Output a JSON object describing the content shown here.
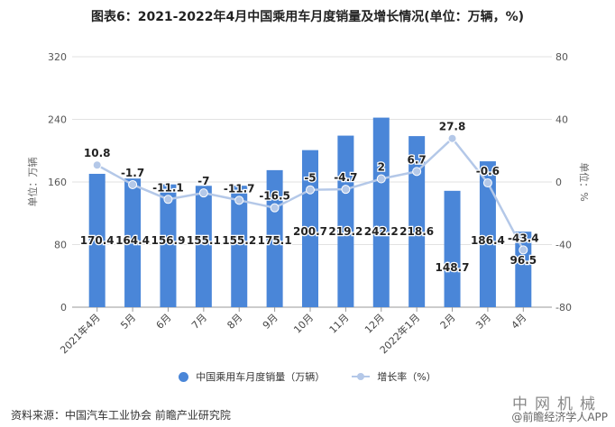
{
  "title": "图表6：2021-2022年4月中国乘用车月度销量及增长情况(单位：万辆，%)",
  "chart_data": {
    "type": "bar",
    "title": "图表6：2021-2022年4月中国乘用车月度销量及增长情况(单位：万辆，%)",
    "categories": [
      "2021年4月",
      "5月",
      "6月",
      "7月",
      "8月",
      "9月",
      "10月",
      "11月",
      "12月",
      "2022年1月",
      "2月",
      "3月",
      "4月"
    ],
    "series": [
      {
        "name": "中国乘用车月度销量（万辆）",
        "type": "bar",
        "axis": "left",
        "color": "#4a86d8",
        "values": [
          170.4,
          164.4,
          156.9,
          155.1,
          155.2,
          175.1,
          200.7,
          219.2,
          242.2,
          218.6,
          148.7,
          186.4,
          96.5
        ]
      },
      {
        "name": "增长率（%）",
        "type": "line",
        "axis": "right",
        "color": "#b4c8e8",
        "values": [
          10.8,
          -1.7,
          -11.1,
          -7,
          -11.7,
          -16.5,
          -5,
          -4.7,
          2,
          6.7,
          27.8,
          -0.6,
          -43.4
        ]
      }
    ],
    "ylabel": "单位：万辆",
    "ylabel_right": "单位：%",
    "ylim": [
      0,
      320
    ],
    "yticks": [
      0,
      80,
      160,
      240,
      320
    ],
    "ylim_right": [
      -80,
      80
    ],
    "yticks_right": [
      -80,
      -40,
      0,
      40,
      80
    ],
    "grid": true,
    "legend_position": "bottom"
  },
  "legend": {
    "bar_label": "中国乘用车月度销量（万辆）",
    "line_label": "增长率（%）"
  },
  "source": "资料来源：中国汽车工业协会 前瞻产业研究院",
  "watermark": {
    "line1": "中网机械",
    "line2": "@前瞻经济学人APP"
  }
}
